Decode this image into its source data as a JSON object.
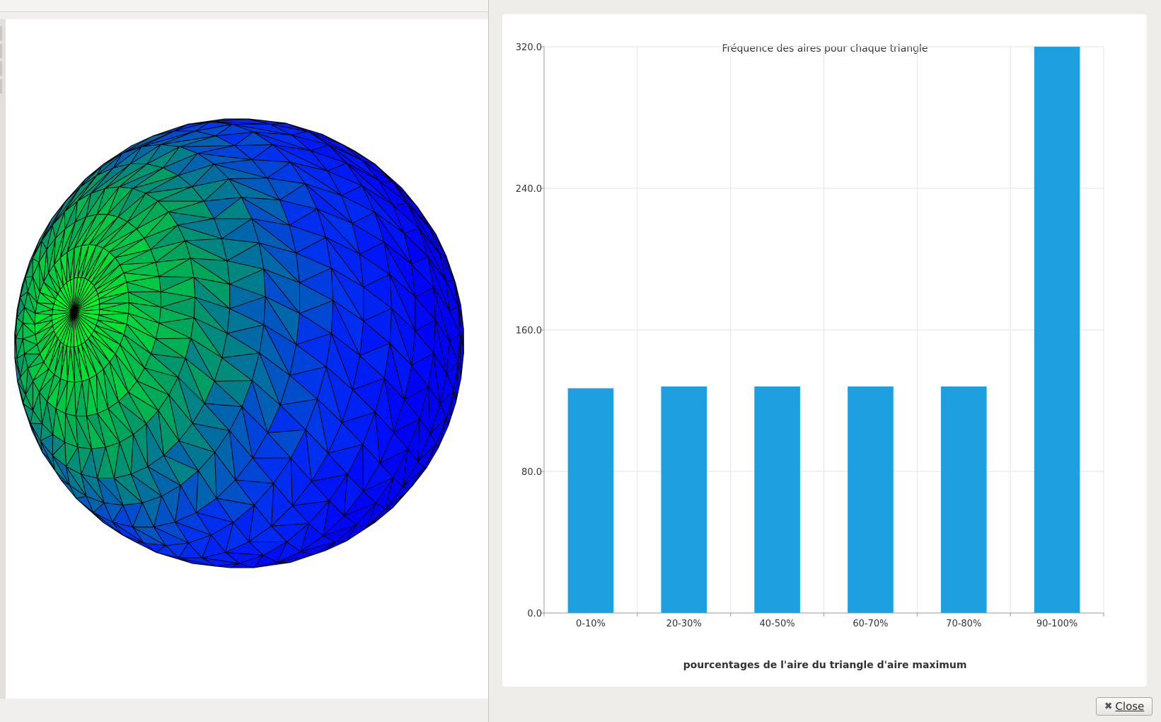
{
  "dialog": {
    "close_label": "Close"
  },
  "mesh_view": {
    "colormap": [
      "#00ff1e",
      "#00a060",
      "#0033ee",
      "#0000ff"
    ]
  },
  "chart_data": {
    "type": "bar",
    "title": "Fréquence des aires pour chaque triangle",
    "xlabel": "pourcentages de l'aire du triangle d'aire maximum",
    "ylabel": "",
    "categories": [
      "0-10%",
      "20-30%",
      "40-50%",
      "60-70%",
      "70-80%",
      "90-100%"
    ],
    "values": [
      127,
      128,
      128,
      128,
      128,
      320
    ],
    "ylim": [
      0,
      320
    ],
    "yticks": [
      "0.0",
      "80.0",
      "160.0",
      "240.0",
      "320.0"
    ],
    "ytick_values": [
      0,
      80,
      160,
      240,
      320
    ],
    "bar_color": "#1e9fe0",
    "grid": true
  }
}
